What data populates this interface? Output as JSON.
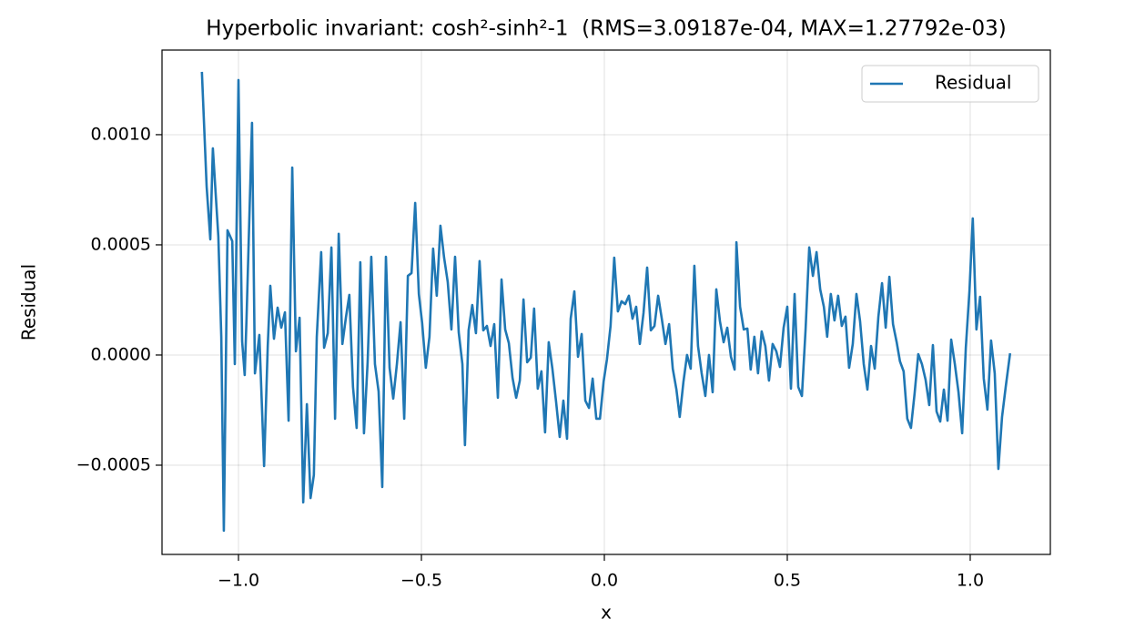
{
  "chart_data": {
    "type": "line",
    "title": "Hyperbolic invariant: cosh²-sinh²-1  (RMS=3.09187e-04, MAX=1.27792e-03)",
    "x_label": "x",
    "y_label": "Residual",
    "xlim": [
      -1.209,
      1.219
    ],
    "ylim": [
      -0.000905,
      0.001384
    ],
    "xticks": [
      {
        "value": -1.0,
        "label": "−1.0"
      },
      {
        "value": -0.5,
        "label": "−0.5"
      },
      {
        "value": 0.0,
        "label": "0.0"
      },
      0.5,
      {
        "value": 1.0,
        "label": "1.0"
      }
    ],
    "yticks": [
      {
        "value": -0.0005,
        "label": "−0.0005"
      },
      {
        "value": 0.0,
        "label": "0.0000"
      },
      {
        "value": 0.0005,
        "label": "0.0005"
      },
      {
        "value": 0.001,
        "label": "0.0010"
      }
    ],
    "grid": true,
    "legend": "upper right",
    "x": [
      -1.1,
      -1.087,
      -1.077,
      -1.07,
      -1.055,
      -1.047,
      -1.04,
      -1.03,
      -1.017,
      -1.01,
      -1.0,
      -0.99,
      -0.983,
      -0.978,
      -0.963,
      -0.955,
      -0.943,
      -0.93,
      -0.92,
      -0.913,
      -0.903,
      -0.893,
      -0.883,
      -0.873,
      -0.863,
      -0.853,
      -0.843,
      -0.833,
      -0.823,
      -0.813,
      -0.803,
      -0.794,
      -0.786,
      -0.774,
      -0.766,
      -0.756,
      -0.746,
      -0.736,
      -0.726,
      -0.716,
      -0.706,
      -0.697,
      -0.687,
      -0.677,
      -0.667,
      -0.657,
      -0.647,
      -0.637,
      -0.627,
      -0.617,
      -0.607,
      -0.597,
      -0.587,
      -0.577,
      -0.567,
      -0.557,
      -0.547,
      -0.537,
      -0.527,
      -0.517,
      -0.507,
      -0.498,
      -0.488,
      -0.478,
      -0.468,
      -0.458,
      -0.448,
      -0.438,
      -0.428,
      -0.418,
      -0.408,
      -0.398,
      -0.388,
      -0.381,
      -0.371,
      -0.361,
      -0.351,
      -0.341,
      -0.331,
      -0.321,
      -0.311,
      -0.301,
      -0.291,
      -0.281,
      -0.271,
      -0.261,
      -0.251,
      -0.241,
      -0.231,
      -0.221,
      -0.211,
      -0.201,
      -0.192,
      -0.182,
      -0.172,
      -0.162,
      -0.152,
      -0.142,
      -0.132,
      -0.122,
      -0.112,
      -0.102,
      -0.092,
      -0.082,
      -0.072,
      -0.062,
      -0.052,
      -0.042,
      -0.032,
      -0.022,
      -0.012,
      -0.002,
      0.007,
      0.017,
      0.027,
      0.037,
      0.047,
      0.057,
      0.067,
      0.077,
      0.087,
      0.097,
      0.107,
      0.117,
      0.127,
      0.137,
      0.147,
      0.157,
      0.167,
      0.177,
      0.187,
      0.197,
      0.206,
      0.216,
      0.226,
      0.236,
      0.246,
      0.256,
      0.266,
      0.276,
      0.286,
      0.296,
      0.306,
      0.316,
      0.326,
      0.336,
      0.346,
      0.356,
      0.361,
      0.371,
      0.381,
      0.391,
      0.4,
      0.41,
      0.42,
      0.43,
      0.44,
      0.45,
      0.46,
      0.47,
      0.48,
      0.49,
      0.5,
      0.51,
      0.52,
      0.53,
      0.54,
      0.55,
      0.56,
      0.57,
      0.58,
      0.59,
      0.6,
      0.609,
      0.619,
      0.629,
      0.639,
      0.649,
      0.659,
      0.669,
      0.679,
      0.689,
      0.699,
      0.709,
      0.719,
      0.729,
      0.739,
      0.749,
      0.759,
      0.769,
      0.779,
      0.789,
      0.799,
      0.808,
      0.818,
      0.828,
      0.838,
      0.848,
      0.858,
      0.868,
      0.878,
      0.888,
      0.898,
      0.908,
      0.918,
      0.928,
      0.938,
      0.948,
      0.958,
      0.968,
      0.978,
      0.988,
      0.998,
      1.007,
      1.017,
      1.027,
      1.037,
      1.047,
      1.057,
      1.067,
      1.077,
      1.087,
      1.097,
      1.109
    ],
    "series": [
      {
        "name": "Residual",
        "color": "#1f77b4",
        "values": [
          0.001285,
          0.000764,
          0.000525,
          0.000938,
          0.000537,
          8.3e-05,
          -0.000797,
          0.000566,
          0.000517,
          -4.1e-05,
          0.001248,
          6.2e-05,
          -9.1e-05,
          0.000165,
          0.001054,
          -8.3e-05,
          9.1e-05,
          -0.000504,
          4.1e-05,
          0.000314,
          7.4e-05,
          0.000215,
          0.000124,
          0.000194,
          -0.000298,
          0.000851,
          1.7e-05,
          0.000169,
          -0.000669,
          -0.000223,
          -0.000649,
          -0.000545,
          8.3e-05,
          0.000467,
          3.3e-05,
          9.9e-05,
          0.000488,
          -0.000289,
          0.00055,
          5e-05,
          0.000174,
          0.000273,
          -0.000145,
          -0.000331,
          0.000421,
          -0.000355,
          -3.3e-05,
          0.000446,
          -4.1e-05,
          -0.000165,
          -0.000599,
          0.000446,
          -5.8e-05,
          -0.000198,
          -4.1e-05,
          0.000149,
          -0.000289,
          0.000359,
          0.000372,
          0.00069,
          0.000277,
          0.000145,
          -5.8e-05,
          8.3e-05,
          0.000483,
          0.000269,
          0.000587,
          0.000442,
          0.000331,
          0.000116,
          0.000446,
          0.000103,
          -4.1e-05,
          -0.000409,
          0.000112,
          0.000227,
          9.9e-05,
          0.000426,
          0.000112,
          0.000132,
          4.1e-05,
          0.00014,
          -0.000194,
          0.000343,
          0.000116,
          5.4e-05,
          -0.000103,
          -0.000194,
          -0.000116,
          0.000252,
          -3.3e-05,
          -1.2e-05,
          0.000211,
          -0.000153,
          -7.4e-05,
          -0.000351,
          5.8e-05,
          -6.2e-05,
          -0.000211,
          -0.000372,
          -0.000207,
          -0.00038,
          0.000165,
          0.000289,
          -8e-06,
          9.5e-05,
          -0.000207,
          -0.00024,
          -0.000107,
          -0.000289,
          -0.000289,
          -0.00012,
          -2.1e-05,
          0.000132,
          0.000442,
          0.000198,
          0.000244,
          0.000231,
          0.000269,
          0.000165,
          0.000219,
          5e-05,
          0.00019,
          0.000397,
          0.000112,
          0.000132,
          0.000269,
          0.000165,
          5e-05,
          0.00014,
          -6.2e-05,
          -0.000157,
          -0.000281,
          -0.000124,
          0,
          -6.2e-05,
          0.000405,
          4.1e-05,
          -8.3e-05,
          -0.000186,
          0,
          -0.000169,
          0.000298,
          0.000153,
          5.8e-05,
          0.000124,
          -8e-06,
          -6.6e-05,
          0.000512,
          0.000219,
          0.000116,
          0.00012,
          -6.6e-05,
          8.3e-05,
          -8.3e-05,
          0.000107,
          4.1e-05,
          -0.000116,
          5e-05,
          1.7e-05,
          -5.4e-05,
          0.000124,
          0.000219,
          -0.000153,
          0.000277,
          -0.000145,
          -0.000186,
          0.000116,
          0.000488,
          0.000359,
          0.000467,
          0.000298,
          0.000219,
          8.3e-05,
          0.000277,
          0.000157,
          0.000269,
          0.000132,
          0.000174,
          -5.8e-05,
          5e-05,
          0.000277,
          0.000153,
          -4.1e-05,
          -0.000157,
          4.1e-05,
          -6.2e-05,
          0.000174,
          0.000326,
          0.000124,
          0.000355,
          0.00014,
          5.8e-05,
          -2.9e-05,
          -7.4e-05,
          -0.000289,
          -0.000331,
          -0.000174,
          4e-06,
          -4.1e-05,
          -0.000112,
          -0.000227,
          4.5e-05,
          -0.000256,
          -0.000302,
          -0.000157,
          -0.000298,
          7e-05,
          -4.1e-05,
          -0.000169,
          -0.000355,
          3.3e-05,
          0.000293,
          0.00062,
          0.000116,
          0.000264,
          -0.000107,
          -0.000248,
          6.6e-05,
          -8.3e-05,
          -0.000517,
          -0.000281,
          -0.000145,
          8e-06
        ]
      }
    ]
  }
}
